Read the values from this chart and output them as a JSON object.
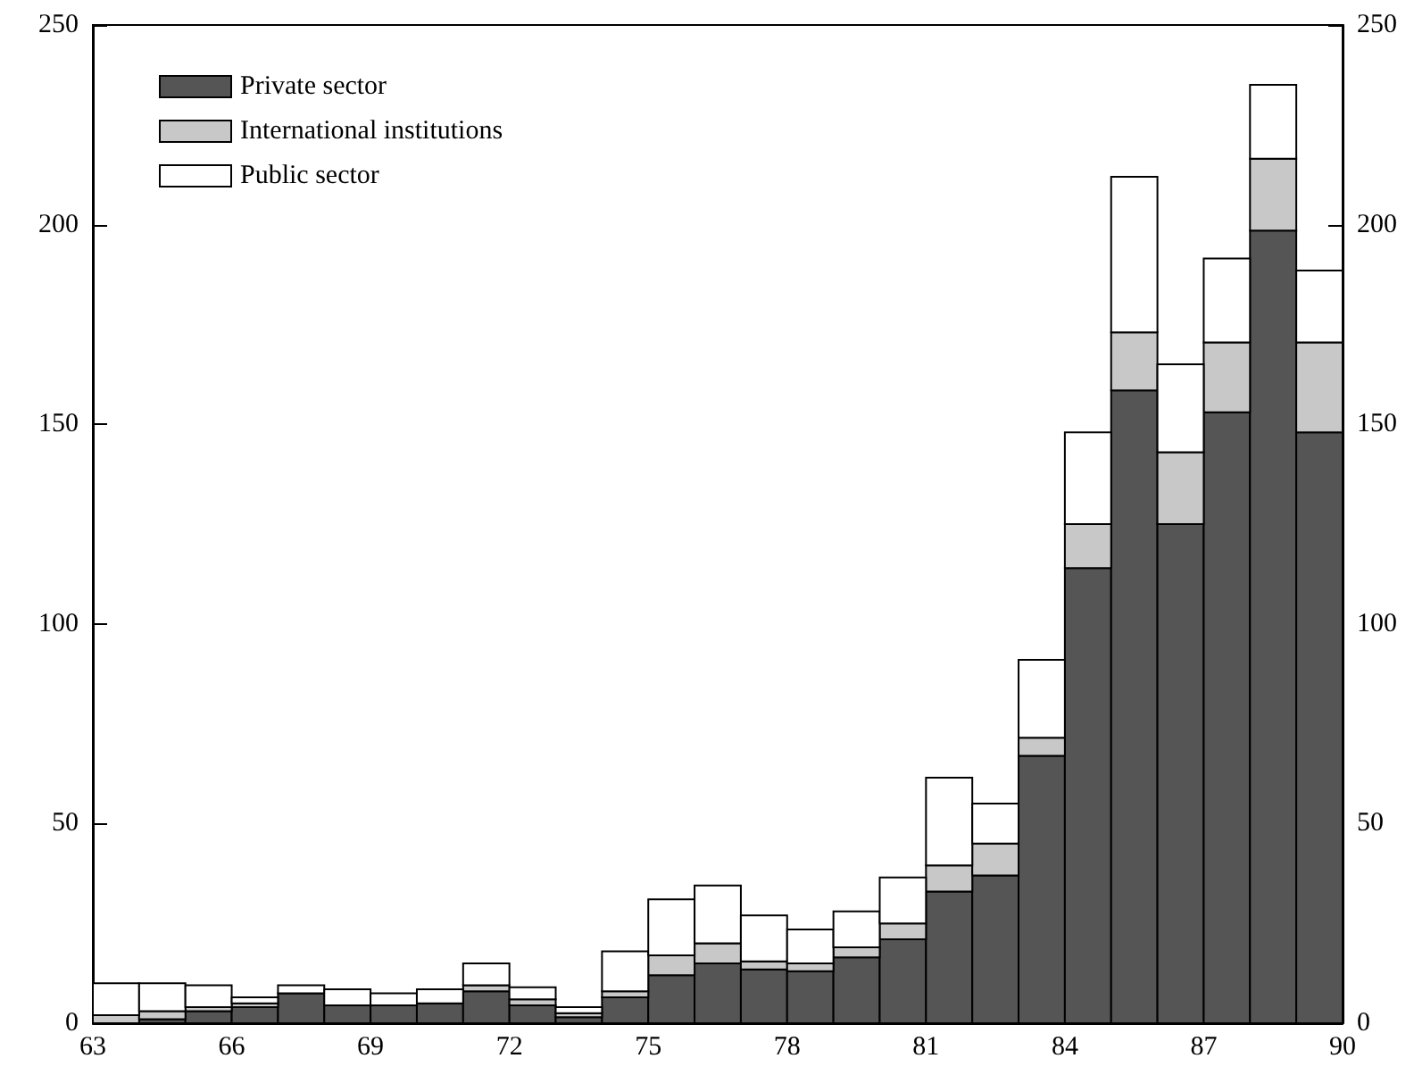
{
  "chart_data": {
    "type": "bar",
    "stacked": true,
    "x": [
      63.5,
      64.5,
      65.5,
      66.5,
      67.5,
      68.5,
      69.5,
      70.5,
      71.5,
      72.5,
      73.5,
      74.5,
      75.5,
      76.5,
      77.5,
      78.5,
      79.5,
      80.5,
      81.5,
      82.5,
      83.5,
      84.5,
      85.5,
      86.5,
      87.5,
      88.5,
      89.5
    ],
    "series": [
      {
        "name": "Private sector",
        "color": "#555555",
        "values": [
          0,
          1,
          3,
          4,
          7.5,
          4.5,
          4.5,
          5,
          8,
          4.5,
          1.5,
          6.5,
          12,
          15,
          13.5,
          13,
          16.5,
          21,
          33,
          37,
          67,
          114,
          158.5,
          125,
          153,
          198.5,
          148
        ]
      },
      {
        "name": "International institutions",
        "color": "#c8c8c8",
        "values": [
          2,
          2,
          1,
          1,
          null,
          null,
          null,
          null,
          1.5,
          1.5,
          1,
          1.5,
          5,
          5,
          2,
          2,
          2.5,
          4,
          6.5,
          8,
          4.5,
          11,
          14.5,
          18,
          17.5,
          18,
          22.5
        ]
      },
      {
        "name": "Public sector",
        "color": "#ffffff",
        "values": [
          8,
          7,
          5.5,
          1.5,
          2,
          4,
          3,
          3.5,
          5.5,
          3,
          1.5,
          10,
          14,
          14.5,
          11.5,
          8.5,
          9,
          11.5,
          22,
          10,
          19.5,
          23,
          39,
          22,
          21,
          18.5,
          18
        ]
      }
    ],
    "xlim": [
      63,
      90
    ],
    "xticks": [
      63,
      66,
      69,
      72,
      75,
      78,
      81,
      84,
      87,
      90
    ],
    "ylim": [
      0,
      250
    ],
    "yticks": [
      0,
      50,
      100,
      150,
      200,
      250
    ],
    "y2lim": [
      0,
      250
    ],
    "y2ticks": [
      0,
      50,
      100,
      150,
      200,
      250
    ],
    "legend": "top left"
  }
}
